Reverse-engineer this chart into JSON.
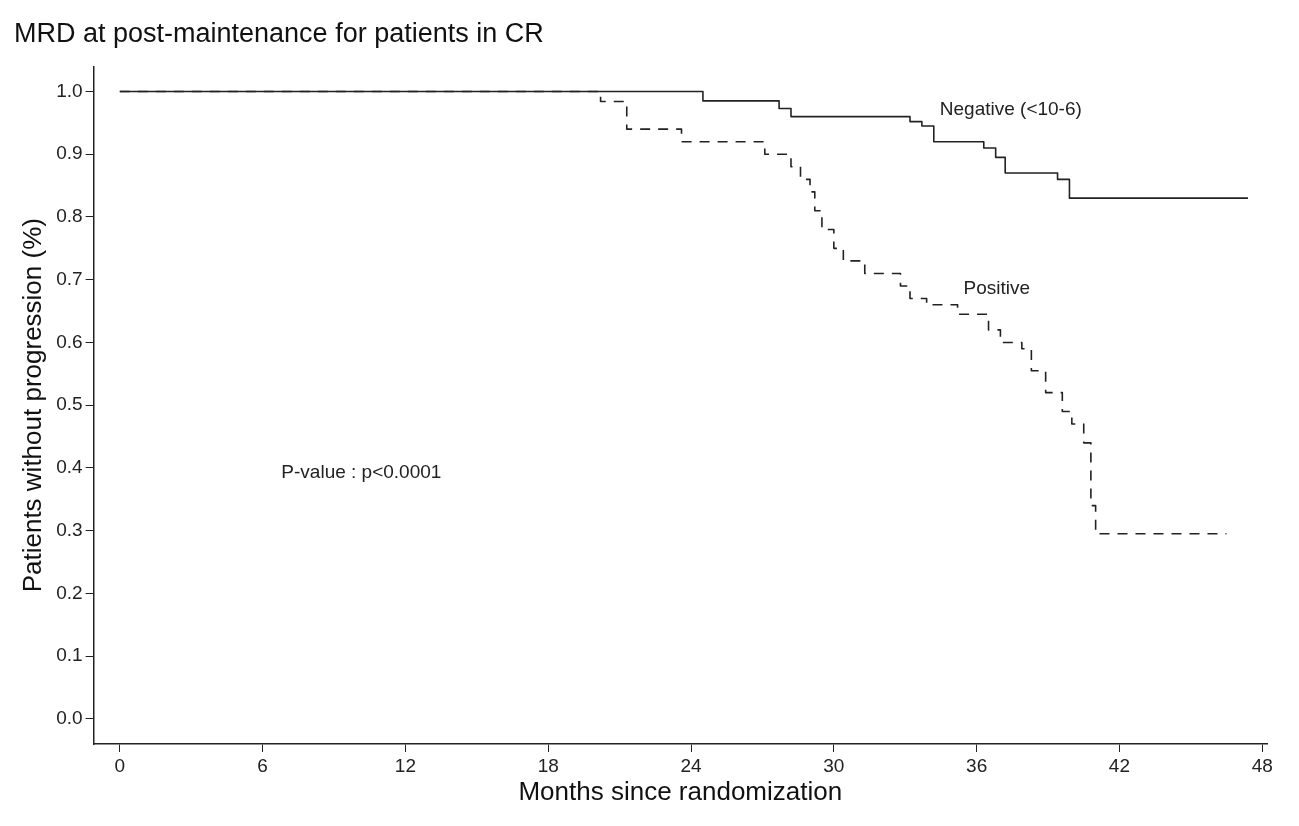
{
  "chart_data": {
    "type": "step",
    "title": "MRD at post-maintenance for patients in CR",
    "xlabel": "Months since randomization",
    "ylabel": "Patients without progression (%)",
    "series": [
      {
        "color": "#222222",
        "line_style": "solid",
        "x": [
          0,
          24.5,
          27.7,
          28.2,
          33.2,
          33.7,
          34.2,
          36.3,
          36.8,
          37.2,
          39.4,
          39.9,
          47.4
        ],
        "values": [
          1.0,
          0.985,
          0.973,
          0.96,
          0.952,
          0.945,
          0.92,
          0.91,
          0.895,
          0.87,
          0.86,
          0.83,
          0.83
        ]
      },
      {
        "color": "#222222",
        "line_style": "dashed",
        "x": [
          0,
          20.2,
          21.3,
          23.6,
          27.1,
          28.2,
          28.6,
          29.0,
          29.2,
          29.5,
          30.0,
          30.4,
          31.3,
          32.8,
          33.2,
          33.9,
          35.2,
          36.5,
          37.0,
          37.9,
          38.3,
          38.9,
          39.6,
          40.0,
          40.5,
          40.8,
          41.0,
          41.3,
          46.5
        ],
        "values": [
          1.0,
          0.984,
          0.94,
          0.92,
          0.9,
          0.88,
          0.86,
          0.84,
          0.81,
          0.78,
          0.75,
          0.73,
          0.71,
          0.69,
          0.67,
          0.66,
          0.645,
          0.62,
          0.6,
          0.59,
          0.555,
          0.52,
          0.49,
          0.47,
          0.44,
          0.34,
          0.295,
          0.295,
          0.295
        ]
      }
    ],
    "xlim": [
      -1.1,
      48.2
    ],
    "xticks": [
      0,
      6,
      12,
      18,
      24,
      30,
      36,
      42,
      48
    ],
    "ylim": [
      -0.04,
      1.04
    ],
    "yticks": [
      {
        "value": 0,
        "label": "0.0"
      },
      {
        "value": 0.1,
        "label": "0.1"
      },
      {
        "value": 0.2,
        "label": "0.2"
      },
      {
        "value": 0.3,
        "label": "0.3"
      },
      {
        "value": 0.4,
        "label": "0.4"
      },
      {
        "value": 0.5,
        "label": "0.5"
      },
      {
        "value": 0.6,
        "label": "0.6"
      },
      {
        "value": 0.7,
        "label": "0.7"
      },
      {
        "value": 0.8,
        "label": "0.8"
      },
      {
        "value": 0.9,
        "label": "0.9"
      },
      {
        "value": 1.0,
        "label": "1.0"
      }
    ],
    "annotations": [
      {
        "text": "Negative (<10-6)",
        "x": 34.2,
        "y": 0.945
      },
      {
        "text": "Positive",
        "x": 35.2,
        "y": 0.66
      },
      "P-value : p<0.0001"
    ],
    "grid": false,
    "legend": false,
    "marker": "none"
  }
}
